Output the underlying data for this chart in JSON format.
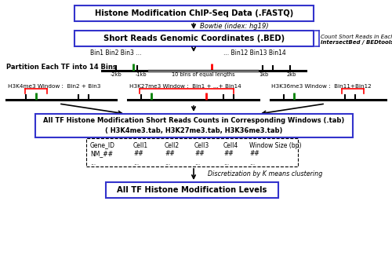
{
  "box1_text": "Histone Modification ChIP-Seq Data (.FASTQ)",
  "arrow1_label": "Bowtie (index: hg19)",
  "box2_text": "Short Reads Genomic Coordinates (.BED)",
  "partition_label": "Partition Each TF into 14 Bins",
  "bin_labels_left": "Bin1 Bin2 Bin3 ...",
  "bin_labels_right": "... Bin12 Bin13 Bin14",
  "count_label": "Count Short Reads in Each Bin\nintersectBed / BEDtools",
  "axis_m2kb": "-2kb",
  "axis_m1kb": "-1kb",
  "axis_center": "10 bins of equal lengths",
  "axis_p1kb": "1kb",
  "axis_p2kb": "2kb",
  "window1_label": "H3K4me3 Window :  Bin2 + Bin3",
  "window2_label": "H3K27me3 Window :  Bin1 + ...+ Bin14",
  "window3_label": "H3K36me3 Window :  Bin11+Bin12",
  "box3_line1": "All TF Histone Modification Short Reads Counts in Corresponding Windows (.tab)",
  "box3_line2": "( H3K4me3.tab, H3K27me3.tab, H3K36me3.tab)",
  "table_col1": "Gene_ID",
  "table_col2": "Cell1",
  "table_col3": "Cell2",
  "table_col4": "Cell3",
  "table_col5": "Cell4",
  "table_col6": "Window Size (bp)",
  "table_r1c1": "NM_##",
  "table_r1c2": "##",
  "table_r1c3": "##",
  "table_r1c4": "##",
  "table_r1c5": "##",
  "table_r1c6": "##",
  "table_r2c1": "...",
  "table_r2c2": "...",
  "table_r2c3": "...",
  "table_r2c4": "...",
  "table_r2c5": "...",
  "table_r2c6": "...",
  "discretize_label": "Discretization by K means clustering",
  "box4_text": "All TF Histone Modification Levels",
  "box_border": "#3333cc",
  "bg_color": "#ffffff"
}
